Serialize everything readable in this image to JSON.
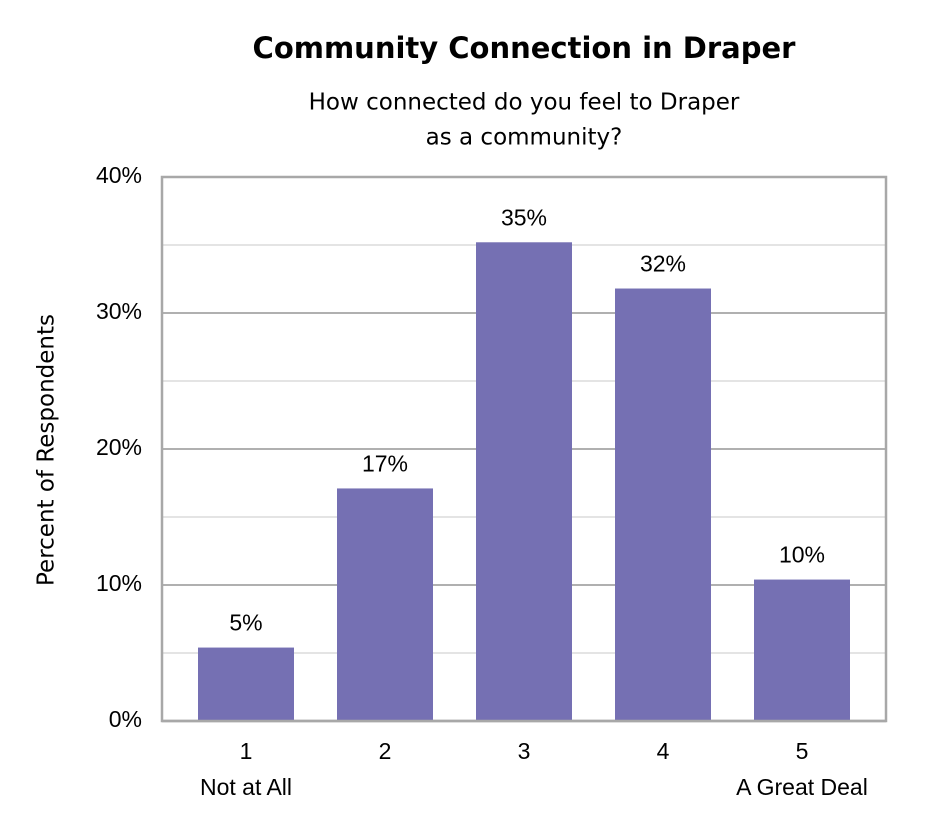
{
  "chart_data": {
    "type": "bar",
    "title": "Community Connection in Draper",
    "subtitle": [
      "How connected do you feel to Draper",
      "as a community?"
    ],
    "y_label": "Percent of Respondents",
    "categories": [
      "1",
      "2",
      "3",
      "4",
      "5"
    ],
    "category_sublabels": [
      "Not at All",
      null,
      null,
      null,
      "A Great Deal"
    ],
    "values": [
      5.4,
      17.1,
      35.2,
      31.8,
      10.4
    ],
    "value_labels": [
      "5%",
      "17%",
      "35%",
      "32%",
      "10%"
    ],
    "color": "#7570b3",
    "ylim": [
      0,
      40
    ],
    "yticks": [
      {
        "value": 0,
        "label": "0%"
      },
      {
        "value": 10,
        "label": "10%"
      },
      {
        "value": 20,
        "label": "20%"
      },
      {
        "value": 30,
        "label": "30%"
      },
      {
        "value": 40,
        "label": "40%"
      }
    ],
    "minor_yticks": [
      5,
      15,
      25,
      35
    ],
    "grid": true
  }
}
